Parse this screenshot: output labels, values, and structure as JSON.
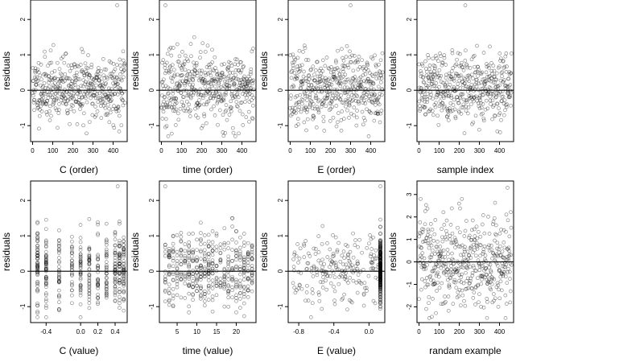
{
  "chart_data": [
    {
      "type": "scatter",
      "xlabel": "C (order)",
      "ylabel": "residuals",
      "xlim": [
        -10,
        470
      ],
      "ylim": [
        -1.45,
        2.55
      ],
      "xticks": [
        0,
        100,
        200,
        300,
        400
      ],
      "yticks": [
        -1,
        0,
        1,
        2
      ],
      "hline": 0,
      "n": 460,
      "x_pattern": "index",
      "y_pattern": "fan",
      "seed": 11,
      "outliers": [
        [
          420,
          2.4
        ]
      ]
    },
    {
      "type": "scatter",
      "xlabel": "time (order)",
      "ylabel": "residuals",
      "xlim": [
        -10,
        470
      ],
      "ylim": [
        -1.45,
        2.55
      ],
      "xticks": [
        0,
        100,
        200,
        300,
        400
      ],
      "yticks": [
        -1,
        0,
        1,
        2
      ],
      "hline": 0,
      "n": 460,
      "x_pattern": "index",
      "y_pattern": "base",
      "seed": 23,
      "outliers": [
        [
          20,
          2.4
        ]
      ]
    },
    {
      "type": "scatter",
      "xlabel": "E (order)",
      "ylabel": "residuals",
      "xlim": [
        -10,
        470
      ],
      "ylim": [
        -1.45,
        2.55
      ],
      "xticks": [
        0,
        100,
        200,
        300,
        400
      ],
      "yticks": [
        -1,
        0,
        1,
        2
      ],
      "hline": 0,
      "n": 460,
      "x_pattern": "index",
      "y_pattern": "base",
      "seed": 37,
      "outliers": [
        [
          300,
          2.4
        ]
      ]
    },
    {
      "type": "scatter",
      "xlabel": "sample index",
      "ylabel": "residuals",
      "xlim": [
        -10,
        470
      ],
      "ylim": [
        -1.45,
        2.55
      ],
      "xticks": [
        0,
        100,
        200,
        300,
        400
      ],
      "yticks": [
        -1,
        0,
        1,
        2
      ],
      "hline": 0,
      "n": 460,
      "x_pattern": "index",
      "y_pattern": "base",
      "seed": 51,
      "outliers": [
        [
          230,
          2.4
        ]
      ]
    },
    {
      "type": "scatter",
      "xlabel": "C (value)",
      "ylabel": "residuals",
      "xlim": [
        -0.58,
        0.54
      ],
      "ylim": [
        -1.45,
        2.55
      ],
      "xticks": [
        -0.4,
        0.0,
        0.2,
        0.4
      ],
      "xtick_labels": [
        "-0.4",
        "0.0",
        "0.2",
        "0.4"
      ],
      "yticks": [
        -1,
        0,
        1,
        2
      ],
      "hline": 0,
      "n": 460,
      "x_pattern": "discrete",
      "x_levels": [
        -0.5,
        -0.4,
        -0.25,
        -0.1,
        0.0,
        0.1,
        0.2,
        0.3,
        0.4,
        0.45,
        0.5
      ],
      "y_pattern": "base",
      "seed": 67,
      "outliers": [
        [
          0.43,
          2.4
        ]
      ]
    },
    {
      "type": "scatter",
      "xlabel": "time (value)",
      "ylabel": "residuals",
      "xlim": [
        0.5,
        25
      ],
      "ylim": [
        -1.45,
        2.55
      ],
      "xticks": [
        5,
        10,
        15,
        20
      ],
      "yticks": [
        -1,
        0,
        1,
        2
      ],
      "hline": 0,
      "n": 460,
      "x_pattern": "integer",
      "x_range": [
        2,
        24
      ],
      "y_pattern": "base",
      "seed": 79,
      "outliers": [
        [
          2,
          2.4
        ]
      ]
    },
    {
      "type": "scatter",
      "xlabel": "E (value)",
      "ylabel": "residuals",
      "xlim": [
        -0.92,
        0.18
      ],
      "ylim": [
        -1.45,
        2.55
      ],
      "xticks": [
        -0.8,
        -0.4,
        0.0
      ],
      "xtick_labels": [
        "-0.8",
        "-0.4",
        "0.0"
      ],
      "yticks": [
        -1,
        0,
        1,
        2
      ],
      "hline": 0,
      "n": 460,
      "x_pattern": "skewed",
      "x_cluster": 0.13,
      "y_pattern": "base",
      "seed": 97,
      "outliers": [
        [
          0.13,
          2.4
        ]
      ]
    },
    {
      "type": "scatter",
      "xlabel": "randam example",
      "ylabel": "residuals",
      "xlim": [
        -10,
        470
      ],
      "ylim": [
        -2.7,
        3.6
      ],
      "xticks": [
        0,
        100,
        200,
        300,
        400
      ],
      "yticks": [
        -2,
        -1,
        0,
        1,
        2,
        3
      ],
      "hline": 0,
      "n": 460,
      "x_pattern": "index",
      "y_pattern": "normal",
      "seed": 113,
      "outliers": [
        [
          440,
          3.3
        ]
      ]
    }
  ]
}
